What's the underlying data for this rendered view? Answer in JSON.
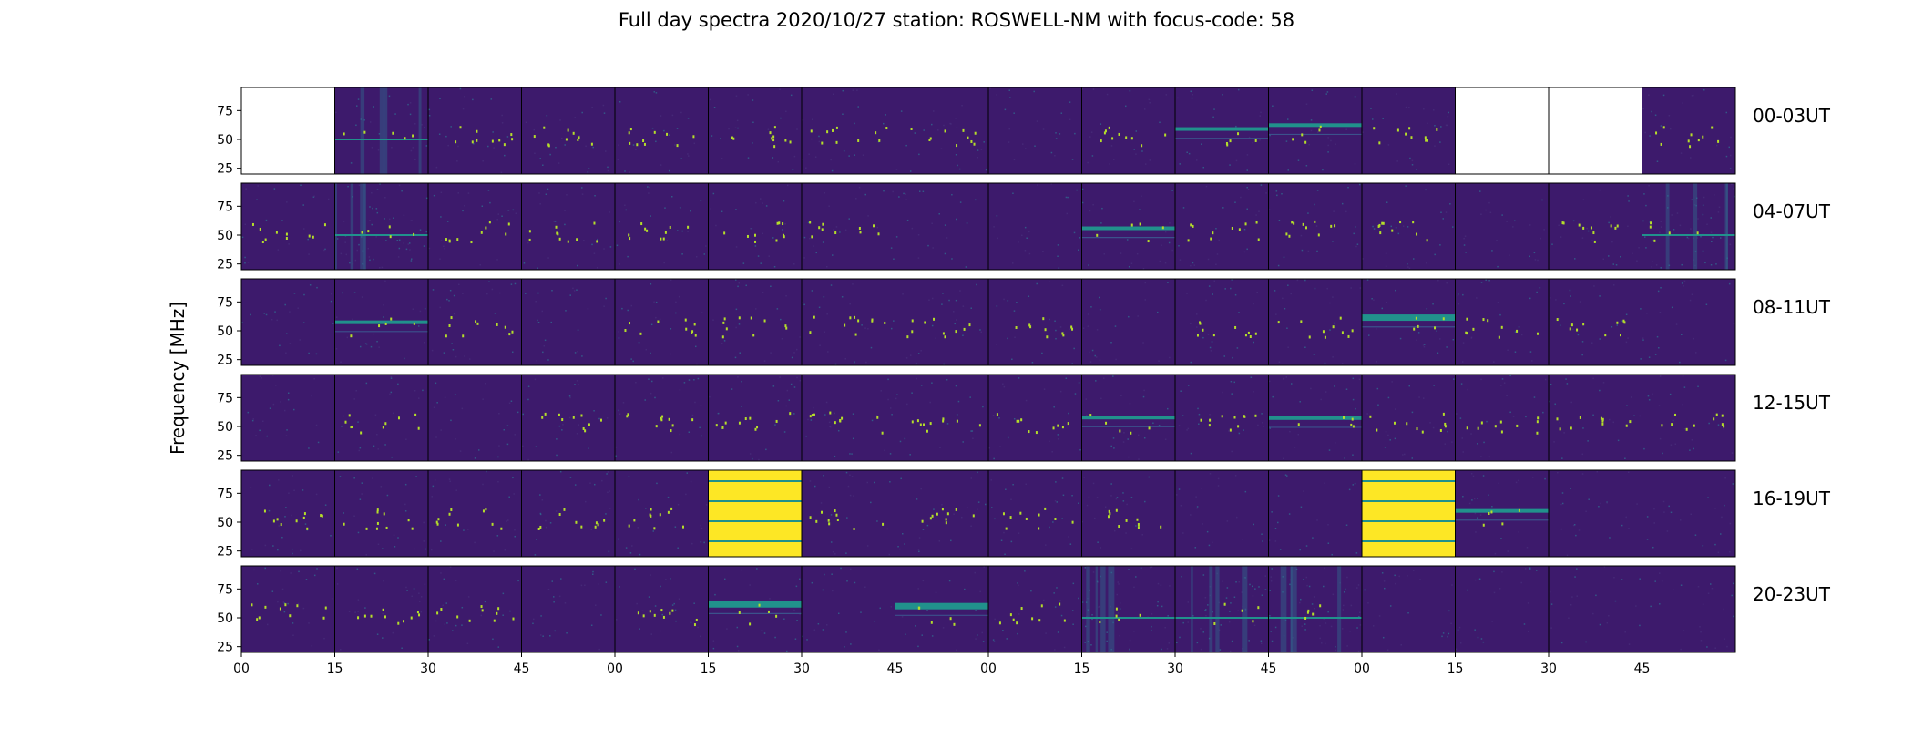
{
  "chart_data": {
    "type": "heatmap",
    "title": "Full day spectra 2020/10/27 station: ROSWELL-NM with focus-code: 58",
    "ylabel": "Frequency [MHz]",
    "y_ticks": [
      25,
      50,
      75
    ],
    "y_range_mhz": [
      20,
      95
    ],
    "x_ticks": [
      "00",
      "15",
      "30",
      "45",
      "00",
      "15",
      "30",
      "45",
      "00",
      "15",
      "30",
      "45",
      "00",
      "15",
      "30",
      "45"
    ],
    "colormap": "viridis",
    "panels_per_row": 16,
    "panel_minutes": 15,
    "rows": [
      {
        "label": "00-03UT",
        "panels": [
          "empty",
          "rfi",
          "dots",
          "dots",
          "dots",
          "dots",
          "dots",
          "dots",
          "noise",
          "dots",
          "band",
          "band",
          "dots",
          "empty",
          "empty",
          "dots"
        ]
      },
      {
        "label": "04-07UT",
        "panels": [
          "dots",
          "noisy",
          "dots",
          "dots",
          "dots",
          "dots",
          "dots",
          "noise",
          "noise",
          "band",
          "dots",
          "dots",
          "dots",
          "noise",
          "dots",
          "noisy"
        ]
      },
      {
        "label": "08-11UT",
        "panels": [
          "noise",
          "band",
          "dots",
          "noise",
          "dots",
          "dots",
          "dots",
          "dots",
          "dots",
          "noise",
          "dots",
          "dots",
          "band-strong",
          "dots",
          "dots",
          "noise"
        ]
      },
      {
        "label": "12-15UT",
        "panels": [
          "noise",
          "dots",
          "noise",
          "dots",
          "dots",
          "dots",
          "dots",
          "dots",
          "dots",
          "band",
          "dots",
          "band",
          "dots",
          "dots",
          "dots",
          "dots"
        ]
      },
      {
        "label": "16-19UT",
        "panels": [
          "dots",
          "dots",
          "dots",
          "dots",
          "dots",
          "saturated",
          "dots",
          "dots",
          "dots",
          "dots",
          "noise",
          "noise",
          "saturated",
          "band",
          "noise",
          "noise"
        ]
      },
      {
        "label": "20-23UT",
        "panels": [
          "dots",
          "dots",
          "dots",
          "noise",
          "dots",
          "band-strong",
          "noise",
          "band-strong",
          "dots",
          "noisy",
          "noisy",
          "noisy",
          "noise",
          "noise",
          "noise",
          "noise"
        ]
      }
    ],
    "colors": {
      "background": "#3d1a6c",
      "band": "#21918c",
      "dot": "#b5de2b",
      "saturated": "#fde725",
      "empty": "#ffffff"
    }
  }
}
